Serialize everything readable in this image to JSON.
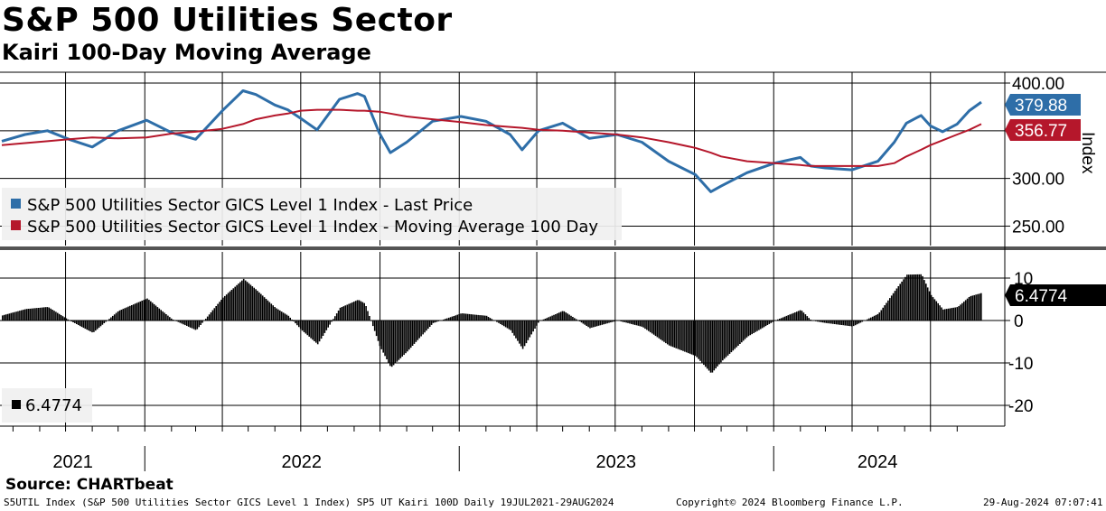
{
  "header": {
    "title": "S&P 500 Utilities Sector",
    "subtitle": "Kairi 100-Day Moving Average"
  },
  "footer": {
    "source": "Source: CHARTbeat",
    "ticker_info": "S5UTIL Index (S&P 500 Utilities Sector GICS Level 1 Index) SP5 UT Kairi 100D  Daily 19JUL2021-29AUG2024",
    "copyright": "Copyright© 2024 Bloomberg Finance L.P.",
    "timestamp": "29-Aug-2024 07:07:41"
  },
  "colors": {
    "price": "#2e6ea8",
    "moving_average": "#b5172b",
    "kairi": "#000000"
  },
  "chart_data": [
    {
      "type": "line",
      "panel": "price",
      "ylabel": "Index",
      "ylim": [
        240,
        400
      ],
      "yticks": [
        "400.00",
        "300.00",
        "250.00"
      ],
      "x_tick_labels": [
        "2021",
        "2022",
        "2023",
        "2024"
      ],
      "grid": true,
      "legend": "top-left",
      "last_values": {
        "price": "379.88",
        "moving_average": "356.77"
      },
      "dates": [
        "2021-07-19",
        "2021-08-15",
        "2021-09-10",
        "2021-10-05",
        "2021-11-01",
        "2021-12-01",
        "2022-01-03",
        "2022-02-01",
        "2022-03-01",
        "2022-04-01",
        "2022-04-25",
        "2022-05-10",
        "2022-06-01",
        "2022-06-16",
        "2022-07-01",
        "2022-07-20",
        "2022-08-15",
        "2022-09-05",
        "2022-09-13",
        "2022-09-30",
        "2022-10-13",
        "2022-11-01",
        "2022-12-01",
        "2023-01-03",
        "2023-02-01",
        "2023-03-01",
        "2023-03-15",
        "2023-04-03",
        "2023-05-01",
        "2023-06-01",
        "2023-07-03",
        "2023-08-01",
        "2023-09-01",
        "2023-10-02",
        "2023-10-20",
        "2023-11-01",
        "2023-12-01",
        "2024-01-02",
        "2024-02-01",
        "2024-02-13",
        "2024-03-01",
        "2024-04-01",
        "2024-05-01",
        "2024-05-20",
        "2024-06-03",
        "2024-06-20",
        "2024-07-01",
        "2024-07-15",
        "2024-08-01",
        "2024-08-15",
        "2024-08-29"
      ],
      "series": [
        {
          "name": "S&P 500 Utilities Sector GICS Level 1 Index - Last Price",
          "values": [
            339,
            346,
            350,
            341,
            333,
            350,
            361,
            348,
            341,
            371,
            392,
            388,
            377,
            372,
            363,
            351,
            383,
            389,
            386,
            348,
            327,
            338,
            360,
            365,
            360,
            346,
            330,
            350,
            358,
            342,
            346,
            338,
            318,
            304,
            286,
            292,
            306,
            316,
            322,
            313,
            311,
            309,
            318,
            338,
            358,
            366,
            355,
            349,
            357,
            371,
            380
          ]
        },
        {
          "name": "S&P 500 Utilities Sector GICS Level 1 Index - Moving Average 100 Day",
          "values": [
            335,
            337,
            339,
            341,
            343,
            342,
            343,
            347,
            349,
            352,
            357,
            362,
            366,
            368,
            371,
            372,
            372,
            371,
            371,
            370,
            368,
            365,
            362,
            359,
            356,
            354,
            353,
            351,
            350,
            348,
            346,
            343,
            338,
            332,
            327,
            323,
            318,
            316,
            314,
            313,
            313,
            313,
            313,
            316,
            323,
            330,
            335,
            340,
            346,
            351,
            357
          ]
        }
      ]
    },
    {
      "type": "bar",
      "panel": "kairi",
      "name": "SP5 UT Kairi 100D",
      "ylim": [
        -24,
        15
      ],
      "yticks": [
        "10",
        "0",
        "-10",
        "-20"
      ],
      "x_tick_labels": [
        "2021",
        "2022",
        "2023",
        "2024"
      ],
      "grid": true,
      "legend": "bottom-left",
      "last_value": "6.4774",
      "dates": [
        "2021-07-19",
        "2021-08-15",
        "2021-09-10",
        "2021-10-05",
        "2021-11-01",
        "2021-12-01",
        "2022-01-03",
        "2022-02-01",
        "2022-03-01",
        "2022-04-01",
        "2022-04-25",
        "2022-05-10",
        "2022-06-01",
        "2022-06-16",
        "2022-07-01",
        "2022-07-20",
        "2022-08-15",
        "2022-09-05",
        "2022-09-13",
        "2022-09-30",
        "2022-10-13",
        "2022-11-01",
        "2022-12-01",
        "2023-01-03",
        "2023-02-01",
        "2023-03-01",
        "2023-03-15",
        "2023-04-03",
        "2023-05-01",
        "2023-06-01",
        "2023-07-03",
        "2023-08-01",
        "2023-09-01",
        "2023-10-02",
        "2023-10-20",
        "2023-11-01",
        "2023-12-01",
        "2024-01-02",
        "2024-02-01",
        "2024-02-13",
        "2024-03-01",
        "2024-04-01",
        "2024-05-01",
        "2024-05-20",
        "2024-06-03",
        "2024-06-20",
        "2024-07-01",
        "2024-07-15",
        "2024-08-01",
        "2024-08-15",
        "2024-08-29"
      ],
      "values": [
        1.2,
        2.7,
        3.2,
        0.0,
        -2.9,
        2.3,
        5.2,
        0.3,
        -2.3,
        5.4,
        9.8,
        7.2,
        3.0,
        1.1,
        -2.2,
        -5.6,
        3.0,
        4.9,
        4.0,
        -6.0,
        -11.1,
        -7.3,
        -0.6,
        1.7,
        1.1,
        -2.3,
        -6.7,
        -0.2,
        2.3,
        -1.8,
        0.0,
        -1.5,
        -5.9,
        -8.4,
        -12.5,
        -9.6,
        -3.8,
        0.0,
        2.5,
        0.0,
        -0.6,
        -1.4,
        1.6,
        7.0,
        10.8,
        10.9,
        6.0,
        2.6,
        3.2,
        5.7,
        6.5
      ]
    }
  ]
}
